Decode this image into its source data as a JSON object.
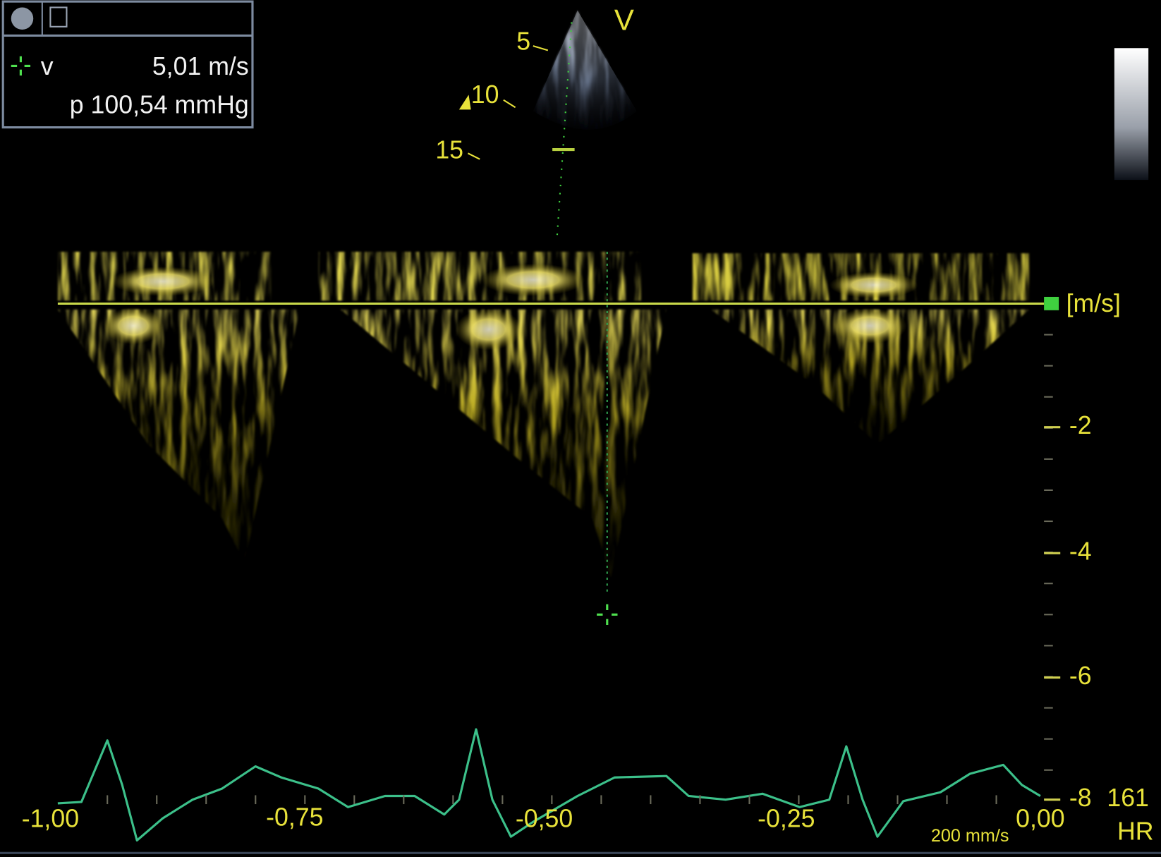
{
  "sector": {
    "label": "V",
    "depth_labels": [
      "5",
      "10",
      "15"
    ]
  },
  "measurement": {
    "v_label": "v",
    "velocity": "5,01 m/s",
    "pressure": "p 100,54 mmHg"
  },
  "velocity_scale": {
    "unit": "[m/s]",
    "ticks": [
      "-2",
      "-4",
      "-6",
      "-8"
    ]
  },
  "heart_rate": {
    "value": "161",
    "label": "HR"
  },
  "time_axis": {
    "ticks": [
      "-1,00",
      "-0,75",
      "-0,50",
      "-0,25",
      "0,00"
    ]
  },
  "sweep_speed": "200 mm/s"
}
